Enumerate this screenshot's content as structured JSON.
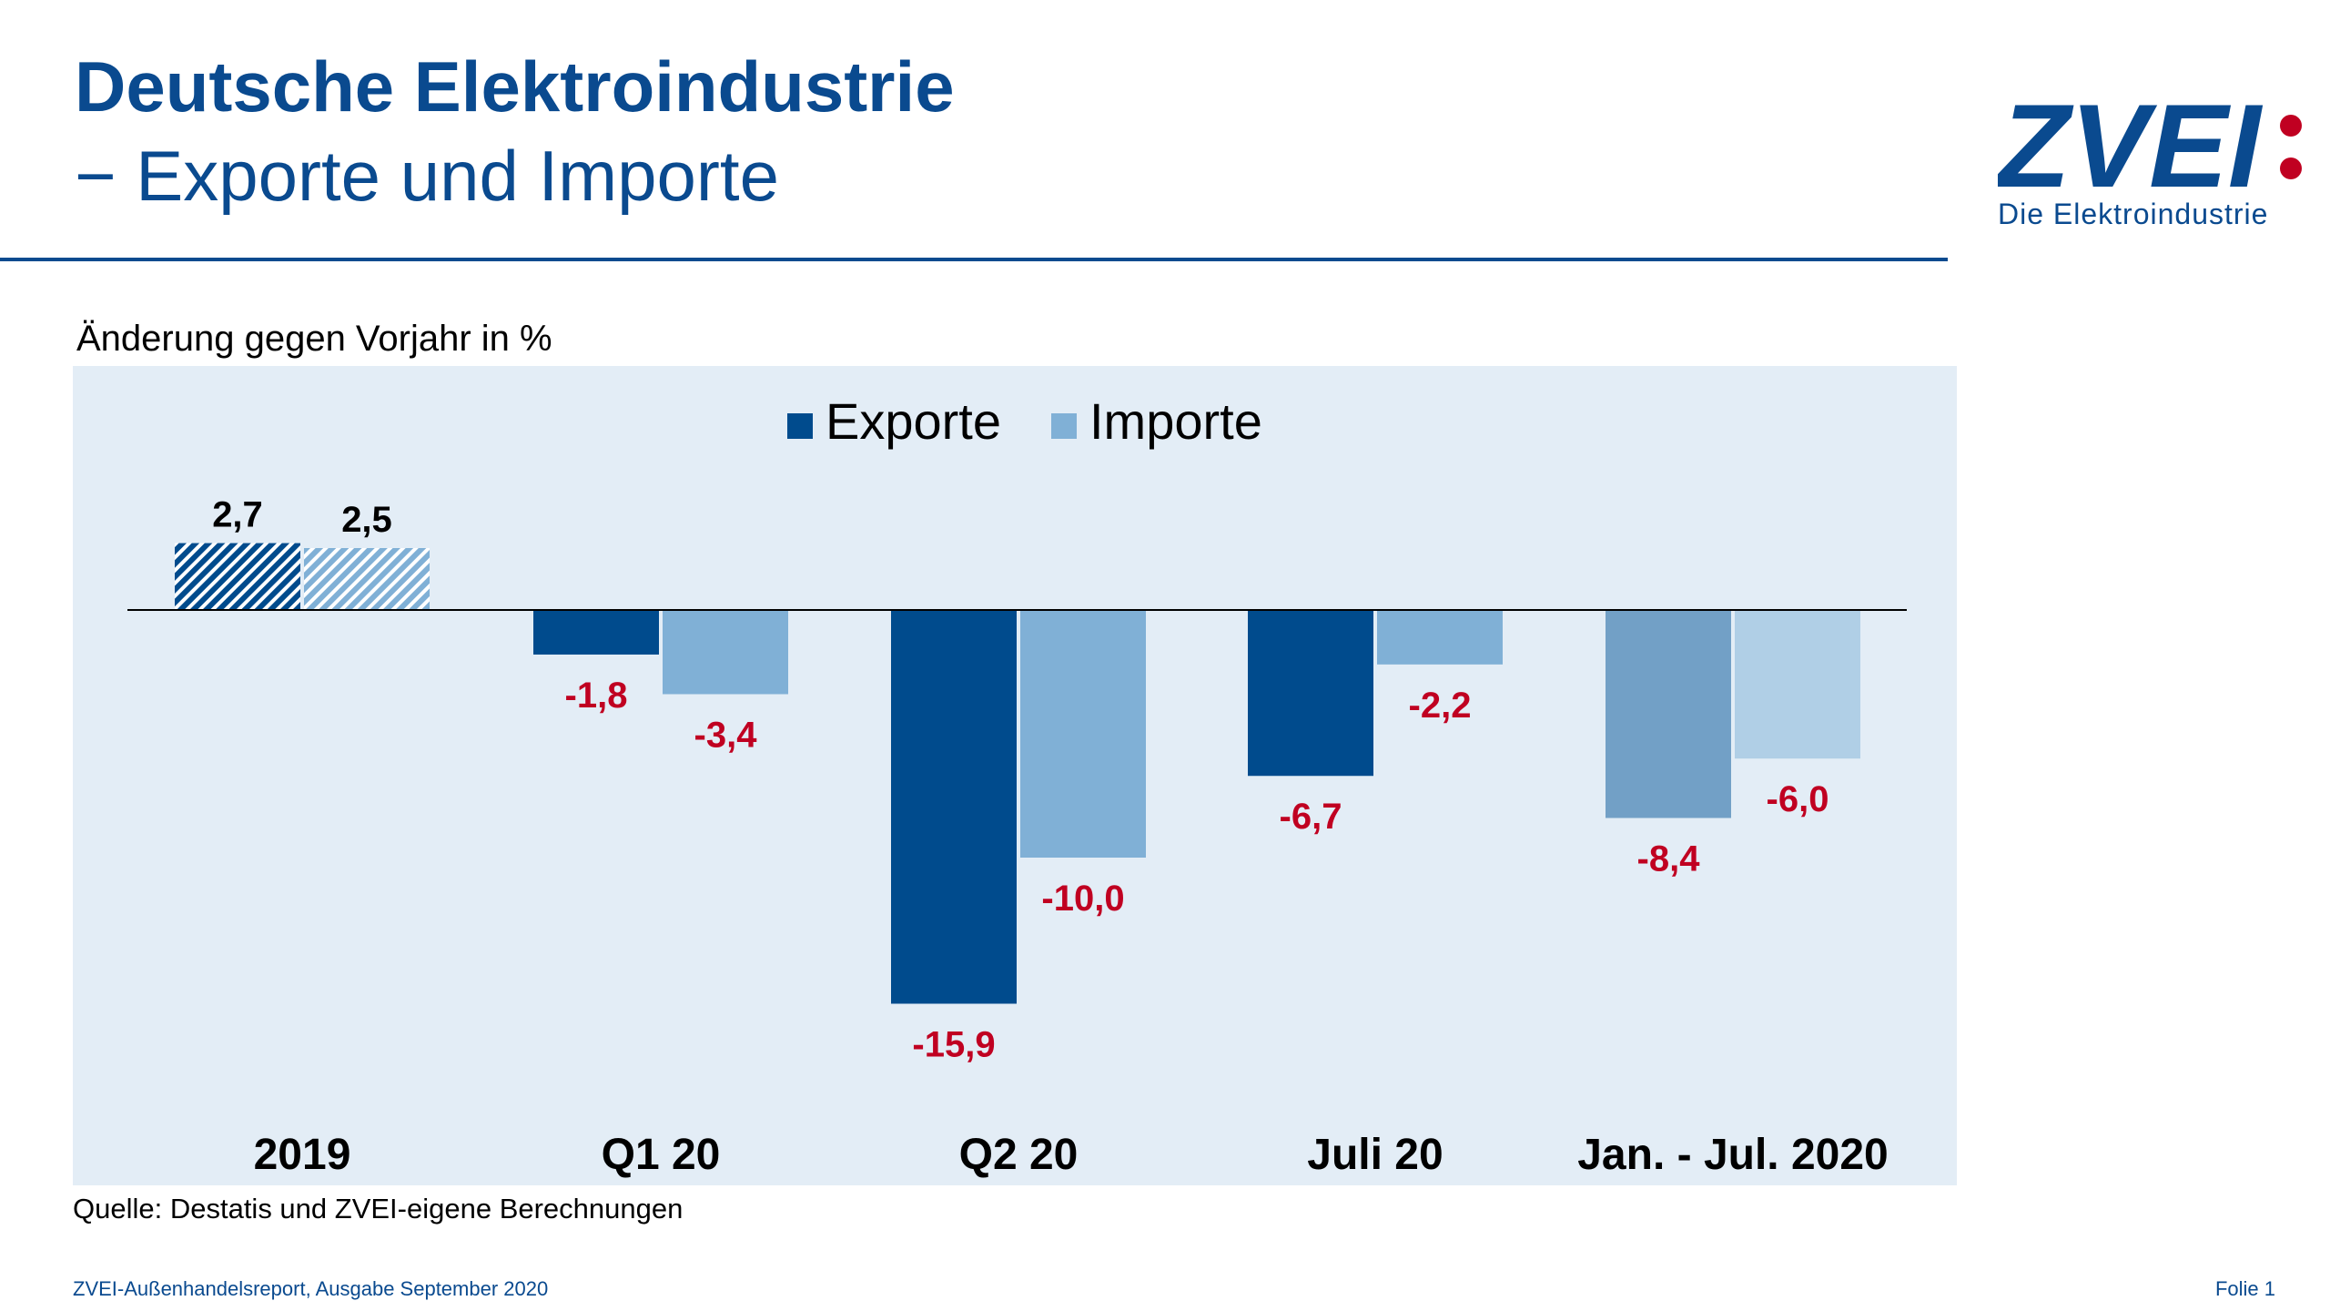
{
  "header": {
    "title": "Deutsche Elektroindustrie",
    "subtitle": "− Exporte und Importe"
  },
  "logo": {
    "wordmark": "ZVEI:",
    "tagline": "Die Elektroindustrie"
  },
  "colors": {
    "brand": "#0a4a8f",
    "exports": "#004b8d",
    "imports": "#80b0d6",
    "exports_cumulative": "#72a0c6",
    "imports_cumulative": "#b0cfe6",
    "negative_label": "#c00021",
    "plot_background": "#e3edf6"
  },
  "chart_data": {
    "type": "bar",
    "title": "",
    "ylabel": "Änderung gegen Vorjahr in %",
    "xlabel": "",
    "categories": [
      "2019",
      "Q1 20",
      "Q2 20",
      "Juli 20",
      "Jan. - Jul. 2020"
    ],
    "series": [
      {
        "name": "Exporte",
        "values": [
          2.7,
          -1.8,
          -15.9,
          -6.7,
          -8.4
        ],
        "labels": [
          "2,7",
          "-1,8",
          "-15,9",
          "-6,7",
          "-8,4"
        ]
      },
      {
        "name": "Importe",
        "values": [
          2.5,
          -3.4,
          -10.0,
          -2.2,
          -6.0
        ],
        "labels": [
          "2,5",
          "-3,4",
          "-10,0",
          "-2,2",
          "-6,0"
        ]
      }
    ],
    "legend_position": "top-center",
    "grid": false,
    "ylim": [
      -20,
      5
    ]
  },
  "source": "Quelle: Destatis und ZVEI-eigene Berechnungen",
  "footer": {
    "left": "ZVEI-Außenhandelsreport, Ausgabe September 2020",
    "right": "Folie 1"
  }
}
